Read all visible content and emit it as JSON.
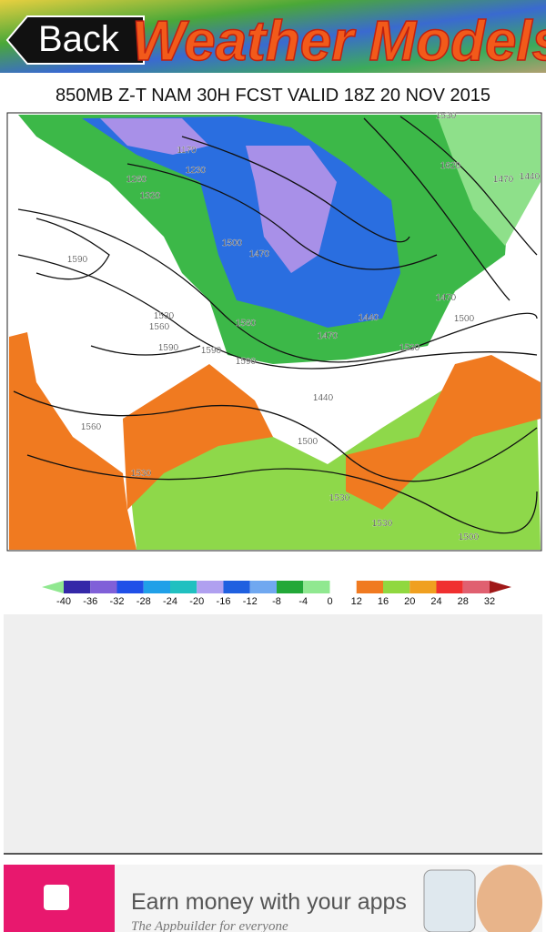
{
  "header": {
    "back": "Back",
    "title": "Weather Models"
  },
  "map": {
    "title": "850MB Z-T NAM 30H FCST VALID 18Z 20 NOV 2015",
    "contour_labels": [
      "1530",
      "1620",
      "1470",
      "1440",
      "1170",
      "1230",
      "1260",
      "1320",
      "1590",
      "1530",
      "1560",
      "1590",
      "1560",
      "1590",
      "1470",
      "1530",
      "1470",
      "1500",
      "1440",
      "1560",
      "1530",
      "1440",
      "1500",
      "1530",
      "1530",
      "1500",
      "1470",
      "1500",
      "1590"
    ]
  },
  "legend": {
    "labels": [
      "-40",
      "-36",
      "-32",
      "-28",
      "-24",
      "-20",
      "-16",
      "-12",
      "-8",
      "-4",
      "0",
      "12",
      "16",
      "20",
      "24",
      "28",
      "32"
    ]
  },
  "ad": {
    "headline": "Earn money with your apps",
    "tagline": "The Appbuilder for everyone"
  }
}
